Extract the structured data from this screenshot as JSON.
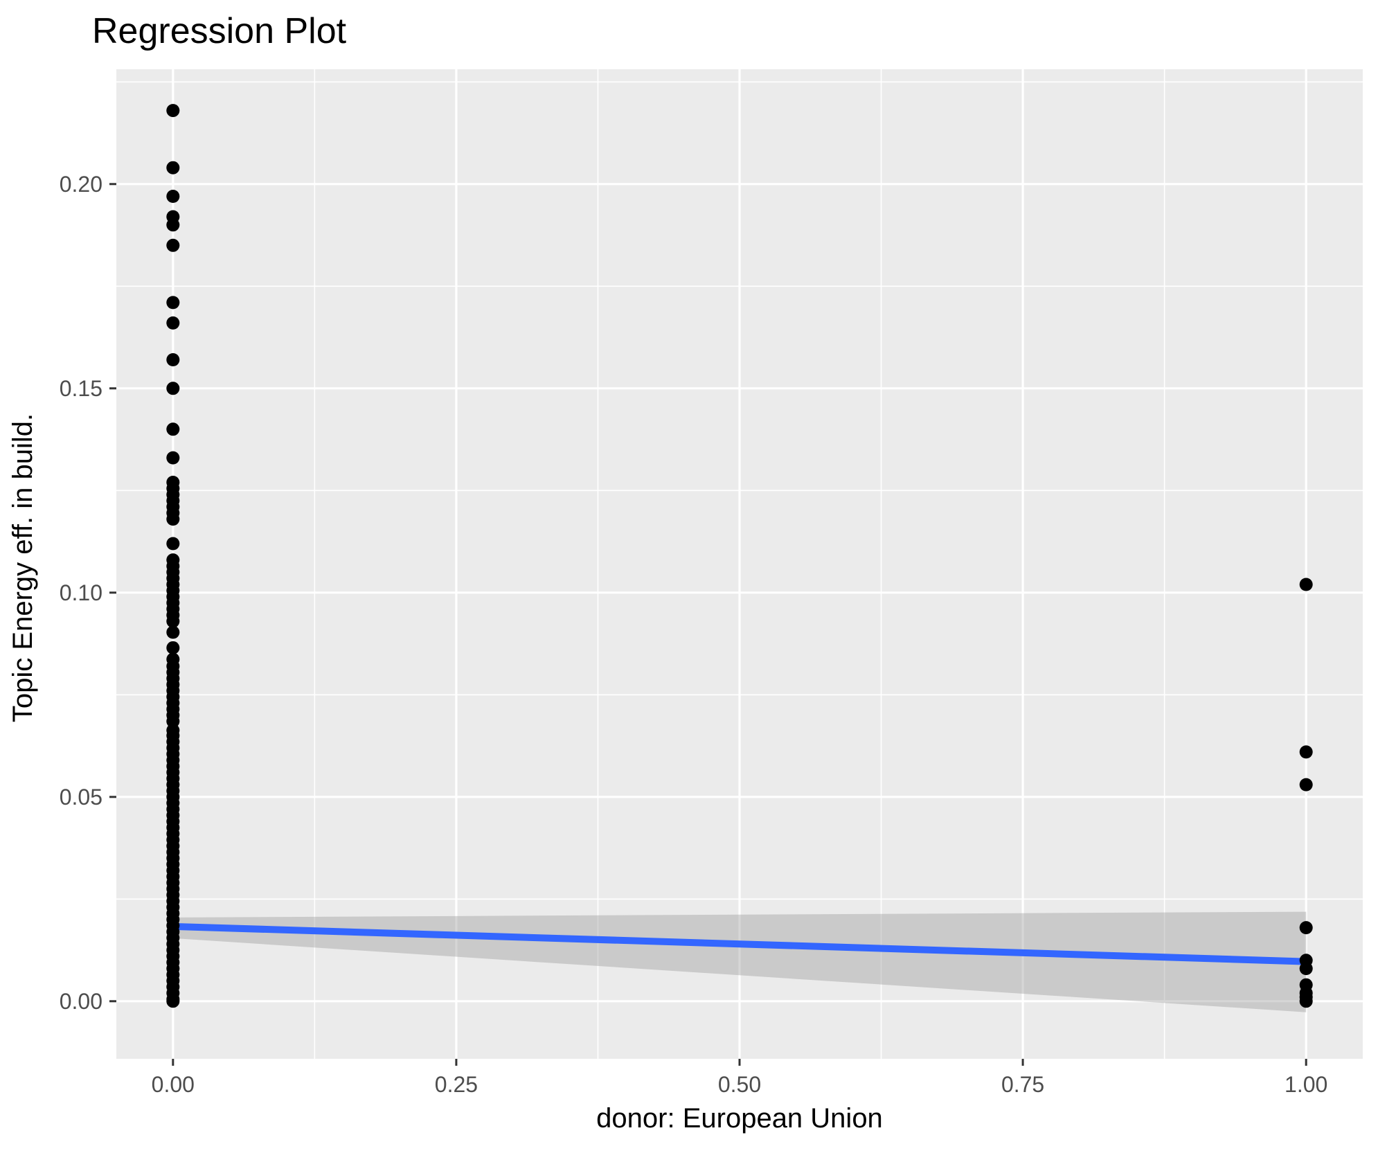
{
  "chart_data": {
    "type": "scatter",
    "title": "Regression Plot",
    "xlabel": "donor: European Union",
    "ylabel": "Topic Energy eff. in build.",
    "xlim": [
      -0.05,
      1.05
    ],
    "ylim": [
      -0.0141,
      0.2281
    ],
    "grid": true,
    "legend_position": "none",
    "x_ticks": [
      0.0,
      0.25,
      0.5,
      0.75,
      1.0
    ],
    "x_tick_labels": [
      "0.00",
      "0.25",
      "0.50",
      "0.75",
      "1.00"
    ],
    "y_ticks": [
      0.0,
      0.05,
      0.1,
      0.15,
      0.2
    ],
    "y_tick_labels": [
      "0.00",
      "0.05",
      "0.10",
      "0.15",
      "0.20"
    ],
    "x_minor_ticks": [
      0.125,
      0.375,
      0.625,
      0.875
    ],
    "y_minor_ticks": [
      0.025,
      0.075,
      0.125,
      0.175,
      0.225
    ],
    "series": [
      {
        "name": "observations donor=0",
        "type": "points",
        "x": 0,
        "y": [
          0.218,
          0.204,
          0.197,
          0.192,
          0.19,
          0.185,
          0.171,
          0.166,
          0.157,
          0.15,
          0.14,
          0.133,
          0.127,
          0.1255,
          0.124,
          0.1225,
          0.121,
          0.1195,
          0.118,
          0.112,
          0.108,
          0.1065,
          0.105,
          0.1035,
          0.102,
          0.1005,
          0.099,
          0.0975,
          0.096,
          0.0945,
          0.093,
          0.0903,
          0.0865,
          0.0837,
          0.082,
          0.0805,
          0.079,
          0.0775,
          0.076,
          0.0745,
          0.073,
          0.0715,
          0.07,
          0.0685,
          0.0663,
          0.065,
          0.0635,
          0.062,
          0.0605,
          0.059,
          0.0575,
          0.056,
          0.0545,
          0.053,
          0.0515,
          0.05,
          0.0485,
          0.047,
          0.0455,
          0.044,
          0.0425,
          0.041,
          0.0395,
          0.038,
          0.0365,
          0.035,
          0.0335,
          0.032,
          0.0305,
          0.029,
          0.0275,
          0.026,
          0.0245,
          0.023,
          0.0215,
          0.02,
          0.0185,
          0.017,
          0.0155,
          0.014,
          0.0125,
          0.011,
          0.0095,
          0.008,
          0.0065,
          0.005,
          0.0035,
          0.002,
          0.0005,
          0.0
        ]
      },
      {
        "name": "observations donor=1",
        "type": "points",
        "x": 1,
        "y": [
          0.102,
          0.061,
          0.053,
          0.018,
          0.01,
          0.008,
          0.004,
          0.002,
          0.001,
          0.0
        ]
      }
    ],
    "regression_line": {
      "name": "fitted line",
      "x": [
        0,
        1
      ],
      "y": [
        0.0183,
        0.0097
      ]
    },
    "confidence_band": {
      "name": "95% confidence band",
      "x": [
        0,
        1
      ],
      "y_upper": [
        0.0205,
        0.0219
      ],
      "y_lower": [
        0.0154,
        -0.0027
      ]
    }
  },
  "colors": {
    "page_background": "#FFFFFF",
    "panel_background": "#EBEBEB",
    "gridline": "#FFFFFF",
    "point": "#000000",
    "regression_line": "#3366FF",
    "confidence_band": "#999999",
    "confidence_band_opacity": 0.4,
    "tick_mark": "#333333",
    "tick_label": "#4D4D4D",
    "title_text": "#000000"
  }
}
